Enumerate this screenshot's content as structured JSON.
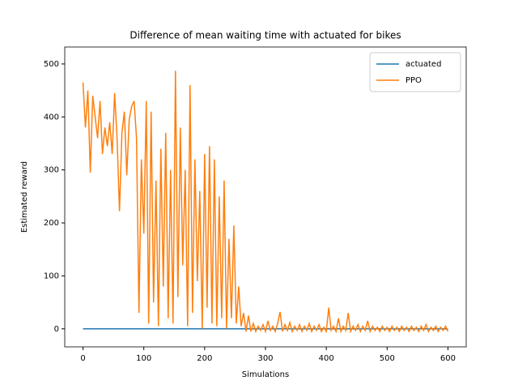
{
  "chart_data": {
    "type": "line",
    "title": "Difference of mean waiting time with actuated for bikes",
    "xlabel": "Simulations",
    "ylabel": "Estimated reward",
    "xlim": [
      -30,
      630
    ],
    "ylim": [
      -34,
      532
    ],
    "xticks": [
      0,
      100,
      200,
      300,
      400,
      500,
      600
    ],
    "yticks": [
      0,
      100,
      200,
      300,
      400,
      500
    ],
    "legend": "upper right",
    "series": [
      {
        "name": "actuated",
        "color": "#1f77b4",
        "x": [
          0,
          600
        ],
        "values": [
          0,
          0
        ]
      },
      {
        "name": "PPO",
        "color": "#ff7f0e",
        "x": [
          0,
          4,
          8,
          12,
          16,
          20,
          24,
          28,
          32,
          36,
          40,
          44,
          48,
          52,
          56,
          60,
          64,
          68,
          72,
          76,
          80,
          84,
          88,
          92,
          96,
          100,
          104,
          108,
          112,
          116,
          120,
          124,
          128,
          132,
          136,
          140,
          144,
          148,
          152,
          156,
          160,
          164,
          168,
          172,
          176,
          180,
          184,
          188,
          192,
          196,
          200,
          204,
          208,
          212,
          216,
          220,
          224,
          228,
          232,
          236,
          240,
          244,
          248,
          252,
          256,
          260,
          264,
          268,
          272,
          276,
          280,
          284,
          288,
          292,
          296,
          300,
          304,
          308,
          312,
          316,
          320,
          324,
          328,
          332,
          336,
          340,
          344,
          348,
          352,
          356,
          360,
          364,
          368,
          372,
          376,
          380,
          384,
          388,
          392,
          396,
          400,
          404,
          408,
          412,
          416,
          420,
          424,
          428,
          432,
          436,
          440,
          444,
          448,
          452,
          456,
          460,
          464,
          468,
          472,
          476,
          480,
          484,
          488,
          492,
          496,
          500,
          504,
          508,
          512,
          516,
          520,
          524,
          528,
          532,
          536,
          540,
          544,
          548,
          552,
          556,
          560,
          564,
          568,
          572,
          576,
          580,
          584,
          588,
          592,
          596,
          600
        ],
        "values": [
          465,
          380,
          450,
          295,
          440,
          400,
          360,
          430,
          330,
          380,
          345,
          390,
          330,
          445,
          360,
          222,
          370,
          410,
          290,
          395,
          420,
          430,
          360,
          30,
          320,
          180,
          430,
          10,
          410,
          50,
          280,
          5,
          340,
          80,
          370,
          20,
          300,
          10,
          487,
          60,
          380,
          120,
          300,
          5,
          460,
          30,
          320,
          90,
          260,
          0,
          330,
          40,
          345,
          10,
          320,
          5,
          250,
          20,
          280,
          0,
          170,
          20,
          195,
          10,
          80,
          5,
          30,
          -5,
          25,
          -5,
          10,
          -5,
          5,
          -3,
          8,
          -5,
          15,
          -3,
          5,
          -5,
          10,
          32,
          -5,
          8,
          -3,
          12,
          -5,
          5,
          -3,
          8,
          -5,
          5,
          -3,
          10,
          -5,
          5,
          -3,
          8,
          -5,
          3,
          -5,
          40,
          -3,
          5,
          -5,
          20,
          -5,
          5,
          -3,
          30,
          -5,
          5,
          -3,
          8,
          -5,
          5,
          -3,
          15,
          -5,
          5,
          -3,
          3,
          -5,
          5,
          -3,
          3,
          -5,
          5,
          -3,
          3,
          -5,
          5,
          -3,
          3,
          -5,
          5,
          -3,
          3,
          -5,
          5,
          -3,
          8,
          -5,
          3,
          -3,
          5,
          -5,
          3,
          -3,
          5,
          -5
        ]
      }
    ]
  }
}
